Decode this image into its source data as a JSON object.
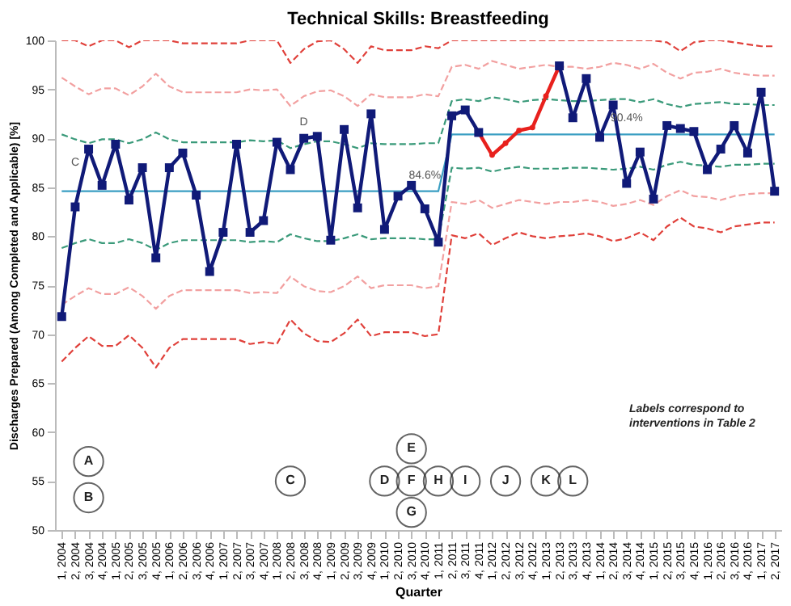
{
  "chart_data": {
    "type": "line",
    "title": "Technical Skills:  Breastfeeding",
    "xlabel": "Quarter",
    "ylabel": "Discharges Prepared (Among Completed and Applicable) [%]",
    "categories": [
      "1, 2004",
      "2, 2004",
      "3, 2004",
      "4, 2004",
      "1, 2005",
      "2, 2005",
      "3, 2005",
      "4, 2005",
      "1, 2006",
      "2, 2006",
      "3, 2006",
      "4, 2006",
      "1, 2007",
      "2, 2007",
      "3, 2007",
      "4, 2007",
      "1, 2008",
      "2, 2008",
      "3, 2008",
      "4, 2008",
      "1, 2009",
      "2, 2009",
      "3, 2009",
      "4, 2009",
      "1, 2010",
      "2, 2010",
      "3, 2010",
      "4, 2010",
      "1, 2011",
      "2, 2011",
      "3, 2011",
      "4, 2011",
      "1, 2012",
      "2, 2012",
      "3, 2012",
      "4, 2012",
      "1, 2013",
      "2, 2013",
      "3, 2013",
      "4, 2013",
      "1, 2014",
      "2, 2014",
      "3, 2014",
      "4, 2014",
      "1, 2015",
      "2, 2015",
      "3, 2015",
      "4, 2015",
      "1, 2016",
      "2, 2016",
      "3, 2016",
      "4, 2016",
      "1, 2017",
      "2, 2017"
    ],
    "ylim": [
      50,
      100
    ],
    "yticks": [
      50,
      55,
      60,
      65,
      70,
      75,
      80,
      85,
      90,
      95,
      100
    ],
    "grid": false,
    "series": [
      {
        "color": "#e0403a",
        "line_style": "dashed",
        "marker": "none",
        "values": [
          100,
          100,
          99.4,
          100,
          100,
          99.3,
          100,
          100,
          100,
          99.7,
          99.7,
          99.7,
          99.7,
          99.7,
          100,
          100,
          100,
          97.7,
          99.1,
          99.9,
          100,
          99.1,
          97.7,
          99.4,
          99.0,
          99.0,
          99.0,
          99.4,
          99.2,
          100,
          100,
          100,
          100,
          100,
          100,
          100,
          100,
          100,
          100,
          100,
          100,
          100,
          100,
          100,
          100,
          99.8,
          98.9,
          99.8,
          100,
          100,
          99.8,
          99.6,
          99.4,
          99.4
        ]
      },
      {
        "color": "#f2a0a0",
        "line_style": "dashed",
        "marker": "none",
        "values": [
          96.2,
          95.3,
          94.5,
          95.1,
          95.1,
          94.4,
          95.3,
          96.6,
          95.3,
          94.7,
          94.7,
          94.7,
          94.7,
          94.7,
          95.0,
          94.9,
          95.0,
          93.3,
          94.3,
          94.8,
          94.9,
          94.3,
          93.3,
          94.5,
          94.2,
          94.2,
          94.2,
          94.5,
          94.3,
          97.3,
          97.5,
          97.1,
          97.9,
          97.5,
          97.1,
          97.3,
          97.5,
          97.3,
          97.3,
          97.1,
          97.3,
          97.7,
          97.5,
          97.1,
          97.6,
          96.7,
          96.1,
          96.7,
          96.8,
          97.1,
          96.7,
          96.5,
          96.4,
          96.4
        ]
      },
      {
        "color": "#3a9a7a",
        "line_style": "dashed",
        "marker": "none",
        "values": [
          90.4,
          89.9,
          89.5,
          89.9,
          89.9,
          89.5,
          89.9,
          90.6,
          89.9,
          89.6,
          89.6,
          89.6,
          89.6,
          89.6,
          89.8,
          89.7,
          89.8,
          89.0,
          89.4,
          89.7,
          89.7,
          89.4,
          89.0,
          89.5,
          89.4,
          89.4,
          89.4,
          89.5,
          89.5,
          93.8,
          94.0,
          93.8,
          94.2,
          94.0,
          93.7,
          93.9,
          94.0,
          93.9,
          93.8,
          93.8,
          93.9,
          94.0,
          94.0,
          93.7,
          94.0,
          93.5,
          93.2,
          93.5,
          93.6,
          93.7,
          93.5,
          93.5,
          93.4,
          93.4
        ]
      },
      {
        "color": "#3a9ec2",
        "line_style": "solid",
        "marker": "none",
        "values": [
          84.6,
          84.6,
          84.6,
          84.6,
          84.6,
          84.6,
          84.6,
          84.6,
          84.6,
          84.6,
          84.6,
          84.6,
          84.6,
          84.6,
          84.6,
          84.6,
          84.6,
          84.6,
          84.6,
          84.6,
          84.6,
          84.6,
          84.6,
          84.6,
          84.6,
          84.6,
          84.6,
          84.6,
          84.6,
          90.4,
          90.4,
          90.4,
          90.4,
          90.4,
          90.4,
          90.4,
          90.4,
          90.4,
          90.4,
          90.4,
          90.4,
          90.4,
          90.4,
          90.4,
          90.4,
          90.4,
          90.4,
          90.4,
          90.4,
          90.4,
          90.4,
          90.4,
          90.4,
          90.4
        ]
      },
      {
        "color": "#3a9a7a",
        "line_style": "dashed",
        "marker": "none",
        "values": [
          78.8,
          79.3,
          79.7,
          79.3,
          79.3,
          79.7,
          79.3,
          78.6,
          79.3,
          79.6,
          79.6,
          79.6,
          79.6,
          79.6,
          79.4,
          79.5,
          79.4,
          80.2,
          79.8,
          79.5,
          79.5,
          79.8,
          80.2,
          79.7,
          79.8,
          79.8,
          79.8,
          79.7,
          79.7,
          87.0,
          86.9,
          87.0,
          86.6,
          86.9,
          87.1,
          86.9,
          86.9,
          86.9,
          87.0,
          87.0,
          86.9,
          86.8,
          86.9,
          87.1,
          86.8,
          87.3,
          87.6,
          87.3,
          87.2,
          87.1,
          87.3,
          87.3,
          87.4,
          87.4
        ]
      },
      {
        "color": "#f2a0a0",
        "line_style": "dashed",
        "marker": "none",
        "values": [
          73.0,
          73.9,
          74.7,
          74.1,
          74.1,
          74.8,
          73.9,
          72.6,
          73.9,
          74.5,
          74.5,
          74.5,
          74.5,
          74.5,
          74.2,
          74.3,
          74.2,
          75.9,
          74.9,
          74.4,
          74.3,
          74.9,
          75.9,
          74.7,
          75.0,
          75.0,
          75.0,
          74.7,
          74.9,
          83.5,
          83.3,
          83.7,
          82.9,
          83.3,
          83.7,
          83.5,
          83.3,
          83.5,
          83.5,
          83.7,
          83.5,
          83.1,
          83.3,
          83.7,
          83.2,
          84.1,
          84.7,
          84.1,
          84.0,
          83.7,
          84.1,
          84.3,
          84.4,
          84.4
        ]
      },
      {
        "color": "#e0403a",
        "line_style": "dashed",
        "marker": "none",
        "values": [
          67.2,
          68.6,
          69.8,
          68.8,
          68.8,
          69.9,
          68.6,
          66.6,
          68.6,
          69.5,
          69.5,
          69.5,
          69.5,
          69.5,
          69.0,
          69.2,
          69.0,
          71.5,
          70.1,
          69.3,
          69.2,
          70.1,
          71.5,
          69.8,
          70.2,
          70.2,
          70.2,
          69.8,
          70.0,
          80.1,
          79.8,
          80.3,
          79.1,
          79.8,
          80.4,
          80.0,
          79.8,
          80.0,
          80.1,
          80.3,
          80.0,
          79.5,
          79.8,
          80.4,
          79.6,
          81.0,
          81.9,
          81.0,
          80.8,
          80.4,
          81.0,
          81.2,
          81.4,
          81.4
        ]
      },
      {
        "color": "#e8211d",
        "line_style": "solid",
        "marker": "circle",
        "values": [
          null,
          null,
          null,
          null,
          null,
          null,
          null,
          null,
          null,
          null,
          null,
          null,
          null,
          null,
          null,
          null,
          null,
          null,
          null,
          null,
          null,
          null,
          null,
          null,
          null,
          null,
          null,
          null,
          null,
          null,
          null,
          90.6,
          88.3,
          89.5,
          90.8,
          91.1,
          94.3,
          97.4,
          null,
          null,
          null,
          null,
          null,
          null,
          null,
          null,
          null,
          null,
          null,
          null,
          null,
          null,
          null,
          null
        ]
      },
      {
        "color": "#101a78",
        "line_style": "solid",
        "marker": "square",
        "values": [
          71.8,
          83.0,
          88.9,
          85.2,
          89.4,
          83.7,
          87.0,
          77.8,
          87.0,
          88.5,
          84.2,
          76.4,
          80.4,
          89.4,
          80.4,
          81.6,
          89.6,
          86.8,
          90.0,
          90.2,
          79.6,
          90.9,
          82.9,
          92.5,
          80.7,
          84.1,
          85.2,
          82.8,
          79.4,
          92.3,
          92.9,
          90.6,
          null,
          null,
          null,
          null,
          null,
          97.4,
          92.1,
          96.1,
          90.1,
          93.4,
          85.4,
          88.6,
          83.8,
          91.3,
          91.0,
          90.7,
          86.8,
          88.9,
          91.3,
          88.5,
          94.7,
          84.6
        ]
      }
    ],
    "annotations": [
      {
        "text": "84.6%",
        "x": "4, 2010",
        "y": 84.6
      },
      {
        "text": "90.4%",
        "x": "3, 2014",
        "y": 90.4
      },
      {
        "text": "C",
        "x": "2, 2004",
        "y": 85.9
      },
      {
        "text": "D",
        "x": "3, 2008",
        "y": 90.0
      },
      {
        "text": "A",
        "x": "3, 2004",
        "y": 57.0
      },
      {
        "text": "B",
        "x": "3, 2004",
        "y": 53.3
      },
      {
        "text": "C",
        "x": "2, 2008",
        "y": 55.0
      },
      {
        "text": "D",
        "x": "1, 2010",
        "y": 55.0
      },
      {
        "text": "E",
        "x": "3, 2010",
        "y": 58.3
      },
      {
        "text": "F",
        "x": "3, 2010",
        "y": 55.0
      },
      {
        "text": "G",
        "x": "3, 2010",
        "y": 51.8
      },
      {
        "text": "H",
        "x": "1, 2011",
        "y": 55.0
      },
      {
        "text": "I",
        "x": "3, 2011",
        "y": 55.0
      },
      {
        "text": "J",
        "x": "2, 2012",
        "y": 55.0
      },
      {
        "text": "K",
        "x": "1, 2013",
        "y": 55.0
      },
      {
        "text": "L",
        "x": "3, 2013",
        "y": 55.0
      },
      "Labels correspond to\ninterventions in Table 2"
    ]
  }
}
